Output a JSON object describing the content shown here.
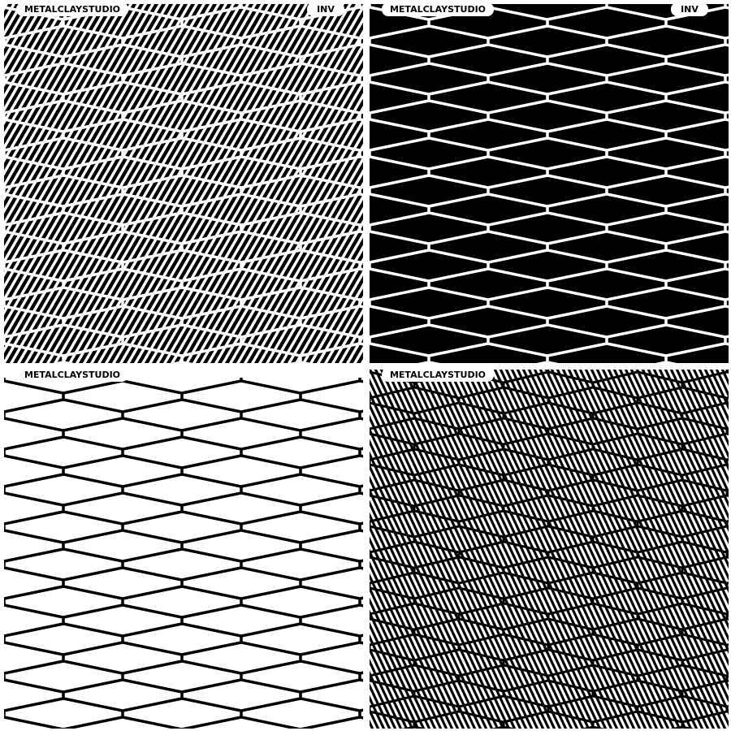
{
  "panels": [
    {
      "brand": "METALCLAYSTUDIO",
      "tag": "INV"
    },
    {
      "brand": "METALCLAYSTUDIO",
      "tag": "INV"
    },
    {
      "brand": "METALCLAYSTUDIO"
    },
    {
      "brand": "METALCLAYSTUDIO"
    }
  ]
}
